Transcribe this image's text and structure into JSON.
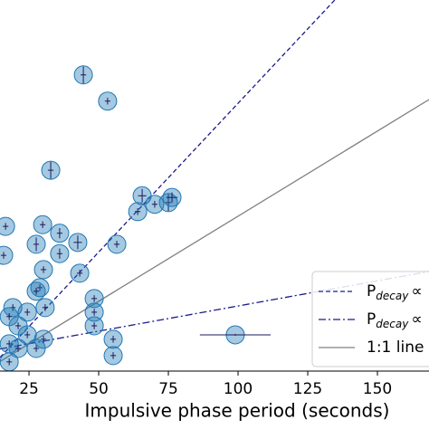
{
  "chart_data": {
    "type": "scatter",
    "xlabel": "Impulsive phase period (seconds)",
    "xlim": [
      14.6,
      168.5
    ],
    "ylim": [
      9,
      227
    ],
    "xticks": [
      25,
      50,
      75,
      100,
      125,
      150
    ],
    "points": {
      "color": "#1f77b4",
      "x": [
        44.5,
        53.2,
        32.8,
        65.6,
        64,
        70.1,
        75,
        76.3,
        29.9,
        36,
        56.5,
        42.5,
        16.6,
        15.9,
        36,
        27.6,
        30.2,
        43.2,
        28.9,
        27.6,
        19.2,
        48.4,
        48.4,
        48.4,
        24.4,
        30.8,
        17.9,
        21.1,
        24.4,
        17.9,
        21.1,
        27.6,
        17.9,
        55.2,
        55.2,
        30.2,
        99
      ],
      "values": [
        183,
        167.6,
        127,
        112,
        102.7,
        107,
        108,
        111,
        95,
        90,
        83.5,
        84.6,
        94,
        77,
        78,
        83.5,
        68.6,
        66.5,
        58,
        55.9,
        46.3,
        51.6,
        43.6,
        35.6,
        43.6,
        46.3,
        41,
        35.6,
        30.3,
        25,
        22.3,
        22.3,
        14.4,
        27.7,
        18.1,
        27.7,
        30.3
      ],
      "xerr": [
        1,
        1,
        1,
        1.5,
        1,
        1,
        1,
        2,
        1,
        1,
        1,
        1.5,
        1,
        1,
        1,
        1,
        1,
        1,
        1,
        1,
        1,
        1,
        1,
        1,
        1,
        1,
        1,
        1,
        1,
        1,
        1,
        1,
        1,
        1,
        1,
        1,
        12.7
      ],
      "yerr": [
        5,
        2,
        5,
        4,
        2,
        2,
        5,
        3,
        2,
        3,
        2,
        4,
        2,
        2,
        3,
        4,
        2,
        2,
        2,
        2,
        2,
        2,
        2,
        2,
        2,
        2,
        2,
        2,
        2,
        2,
        2,
        2,
        2,
        2,
        2,
        2,
        0.5
      ]
    },
    "series": [
      {
        "name": "P",
        "subscript": "decay",
        "suffix": "∝",
        "color": "#1a1a8c",
        "style": "dashed",
        "x": [
          14.6,
          134.7
        ],
        "values": [
          17,
          227
        ]
      },
      {
        "name": "P",
        "subscript": "decay",
        "suffix": "∝",
        "color": "#1a1a8c",
        "style": "dashdot",
        "x": [
          14.6,
          168.5
        ],
        "values": [
          22,
          67.5
        ]
      },
      {
        "name": "1:1 line",
        "color": "#808080",
        "style": "solid",
        "x": [
          14.6,
          168.5
        ],
        "values": [
          14.6,
          168.5
        ]
      }
    ]
  }
}
